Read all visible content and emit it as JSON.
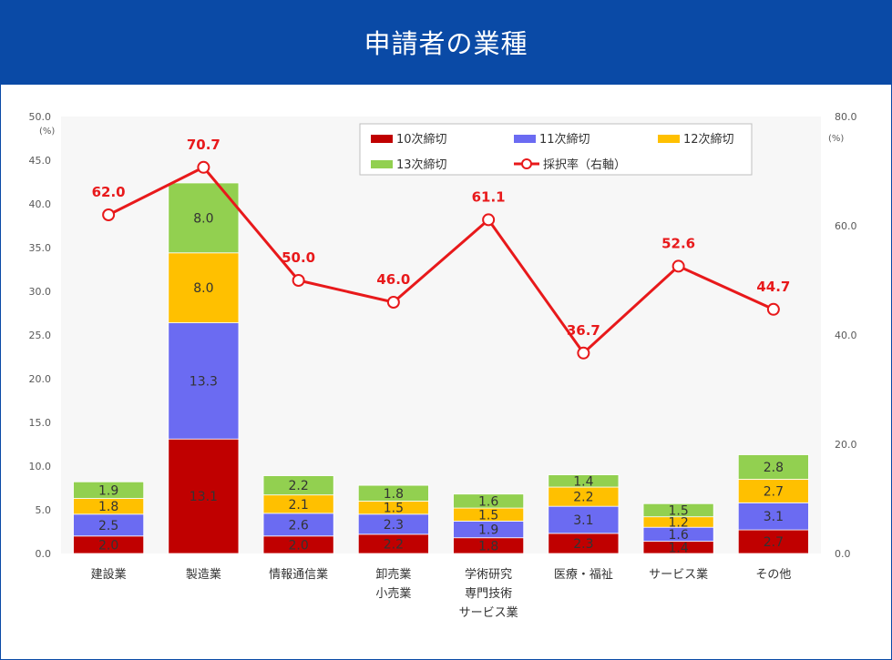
{
  "header": {
    "title": "申請者の業種"
  },
  "chart_data": {
    "type": "bar",
    "stacked": true,
    "categories": [
      "建設業",
      "製造業",
      "情報通信業",
      "卸売業\n小売業",
      "学術研究\n専門技術\nサービス業",
      "医療・福祉",
      "サービス業",
      "その他"
    ],
    "series": [
      {
        "name": "10次締切",
        "color": "#c00000",
        "values": [
          2.0,
          13.1,
          2.0,
          2.2,
          1.8,
          2.3,
          1.4,
          2.7
        ]
      },
      {
        "name": "11次締切",
        "color": "#6b6bf2",
        "values": [
          2.5,
          13.3,
          2.6,
          2.3,
          1.9,
          3.1,
          1.6,
          3.1
        ]
      },
      {
        "name": "12次締切",
        "color": "#ffc000",
        "values": [
          1.8,
          8.0,
          2.1,
          1.5,
          1.5,
          2.2,
          1.2,
          2.7
        ]
      },
      {
        "name": "13次締切",
        "color": "#92d050",
        "values": [
          1.9,
          8.0,
          2.2,
          1.8,
          1.6,
          1.4,
          1.5,
          2.8
        ]
      }
    ],
    "line_series": {
      "name": "採択率（右軸）",
      "color": "#e8191b",
      "axis": "right",
      "values": [
        62.0,
        70.7,
        50.0,
        46.0,
        61.1,
        36.7,
        52.6,
        44.7
      ]
    },
    "y_left": {
      "unit": "(%)",
      "ylim": [
        0,
        50
      ],
      "ticks": [
        "0.0",
        "5.0",
        "10.0",
        "15.0",
        "20.0",
        "25.0",
        "30.0",
        "35.0",
        "40.0",
        "45.0",
        "50.0"
      ]
    },
    "y_right": {
      "unit": "(%)",
      "ylim": [
        0,
        80
      ],
      "ticks": [
        "0.0",
        "20.0",
        "40.0",
        "60.0",
        "80.0"
      ]
    },
    "legend_position": "top-right inside",
    "grid": false
  }
}
